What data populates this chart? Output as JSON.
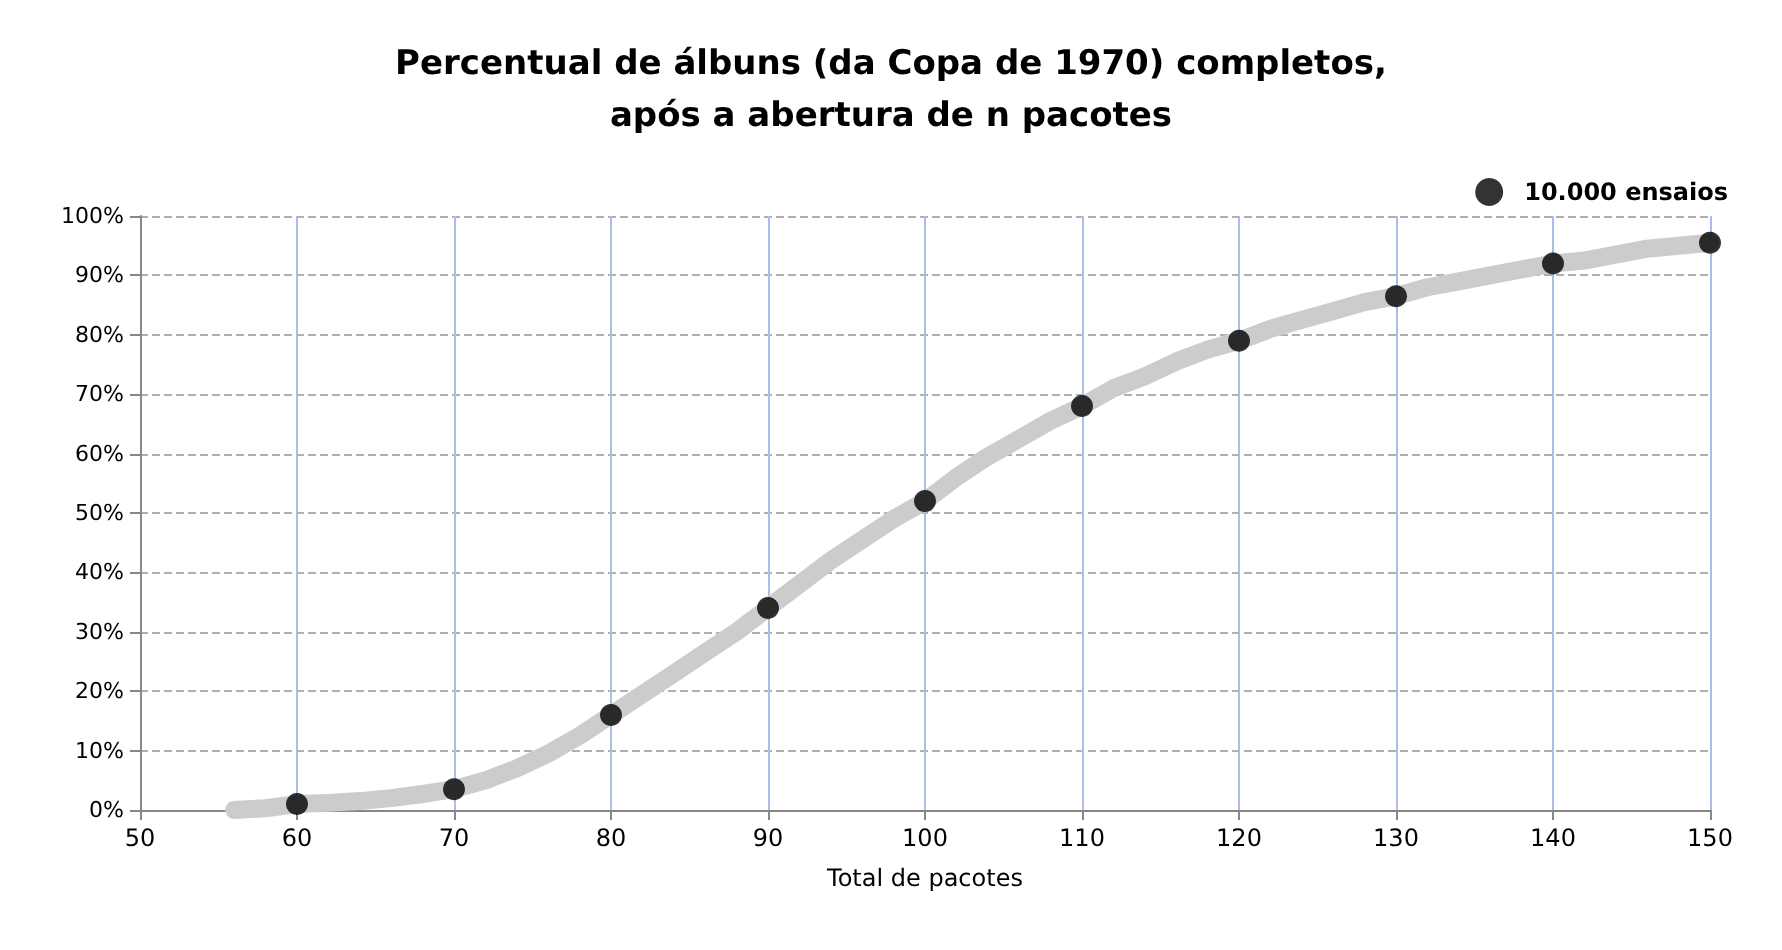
{
  "chart_data": {
    "type": "line",
    "title": "Percentual de álbuns (da Copa de 1970) completos,\napós a abertura de n pacotes",
    "xlabel": "Total de pacotes",
    "xlim": [
      50,
      150
    ],
    "xticks": [
      50,
      60,
      70,
      80,
      90,
      100,
      110,
      120,
      130,
      140,
      150
    ],
    "ylim": [
      0,
      100
    ],
    "yticks": [
      {
        "value": 0,
        "label": "0%"
      },
      {
        "value": 10,
        "label": "10%"
      },
      {
        "value": 20,
        "label": "20%"
      },
      {
        "value": 30,
        "label": "30%"
      },
      {
        "value": 40,
        "label": "40%"
      },
      {
        "value": 50,
        "label": "50%"
      },
      {
        "value": 60,
        "label": "60%"
      },
      {
        "value": 70,
        "label": "70%"
      },
      {
        "value": 80,
        "label": "80%"
      },
      {
        "value": 90,
        "label": "90%"
      },
      {
        "value": 100,
        "label": "100%"
      }
    ],
    "grid": true,
    "legend": "top right",
    "series": [
      {
        "color": "#cccccc",
        "marker": "none",
        "x": [
          56,
          58,
          60,
          62,
          64,
          66,
          68,
          70,
          72,
          74,
          76,
          78,
          80,
          82,
          84,
          86,
          88,
          90,
          92,
          94,
          96,
          98,
          100,
          102,
          104,
          106,
          108,
          110,
          112,
          114,
          116,
          118,
          120,
          122,
          124,
          126,
          128,
          130,
          132,
          134,
          136,
          138,
          140,
          142,
          144,
          146,
          148,
          150
        ],
        "values": [
          0,
          0.3,
          1,
          1.2,
          1.5,
          2,
          2.7,
          3.5,
          5,
          7,
          9.5,
          12.5,
          16,
          19.5,
          23,
          26.5,
          30,
          34,
          38,
          42,
          45.5,
          49,
          52,
          56,
          59.5,
          62.5,
          65.5,
          68,
          71,
          73,
          75.5,
          77.5,
          79,
          81,
          82.5,
          84,
          85.5,
          86.5,
          88,
          89,
          90,
          91,
          92,
          92.5,
          93.5,
          94.5,
          95,
          95.5
        ]
      },
      {
        "type": "scatter",
        "name": "10.000 ensaios",
        "color": "#000000",
        "marker": "circle",
        "x": [
          60,
          70,
          80,
          90,
          100,
          110,
          120,
          130,
          140,
          150
        ],
        "values": [
          1,
          3.5,
          16,
          34,
          52,
          68,
          79,
          86.5,
          92,
          95.5
        ]
      }
    ]
  }
}
